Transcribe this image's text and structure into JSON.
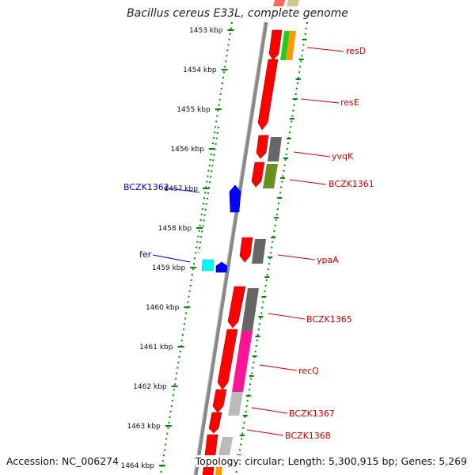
{
  "title": "Bacillus cereus E33L, complete genome",
  "accession": "Accession: NC_006274",
  "topology": "Topology: circular; Length: 5,300,915 bp; Genes: 5,269",
  "ruler": {
    "ticks": [
      "1453 kbp",
      "1454 kbp",
      "1455 kbp",
      "1456 kbp",
      "1457 kbp",
      "1458 kbp",
      "1459 kbp",
      "1460 kbp",
      "1461 kbp",
      "1462 kbp",
      "1463 kbp",
      "1464 kbp"
    ]
  },
  "colors": {
    "forward_gene": "#0000ff",
    "forward_label": "#0000cc",
    "reverse_gene": "#ff0000",
    "reverse_label": "#cc0000",
    "backbone": "#888888",
    "ruler": "#008800",
    "cog_green": "#22cc22",
    "cog_orange": "#ff9900",
    "cog_darkgrey": "#666666",
    "cog_olive": "#6b8e23",
    "cog_pink": "#ff1493",
    "cog_lightgrey": "#bbbbbb",
    "cog_cyan": "#00ffff",
    "cog_tan": "#cccc88"
  },
  "forward_labels": [
    {
      "id": "bczk1362",
      "text": "BCZK1362"
    },
    {
      "id": "fer",
      "text": "fer"
    }
  ],
  "reverse_labels": [
    {
      "id": "resd",
      "text": "resD"
    },
    {
      "id": "rese",
      "text": "resE"
    },
    {
      "id": "yvqk",
      "text": "yvqK"
    },
    {
      "id": "bczk1361",
      "text": "BCZK1361"
    },
    {
      "id": "ypaa",
      "text": "ypaA"
    },
    {
      "id": "bczk1365",
      "text": "BCZK1365"
    },
    {
      "id": "recq",
      "text": "recQ"
    },
    {
      "id": "bczk1367",
      "text": "BCZK1367"
    },
    {
      "id": "bczk1368",
      "text": "BCZK1368"
    }
  ]
}
